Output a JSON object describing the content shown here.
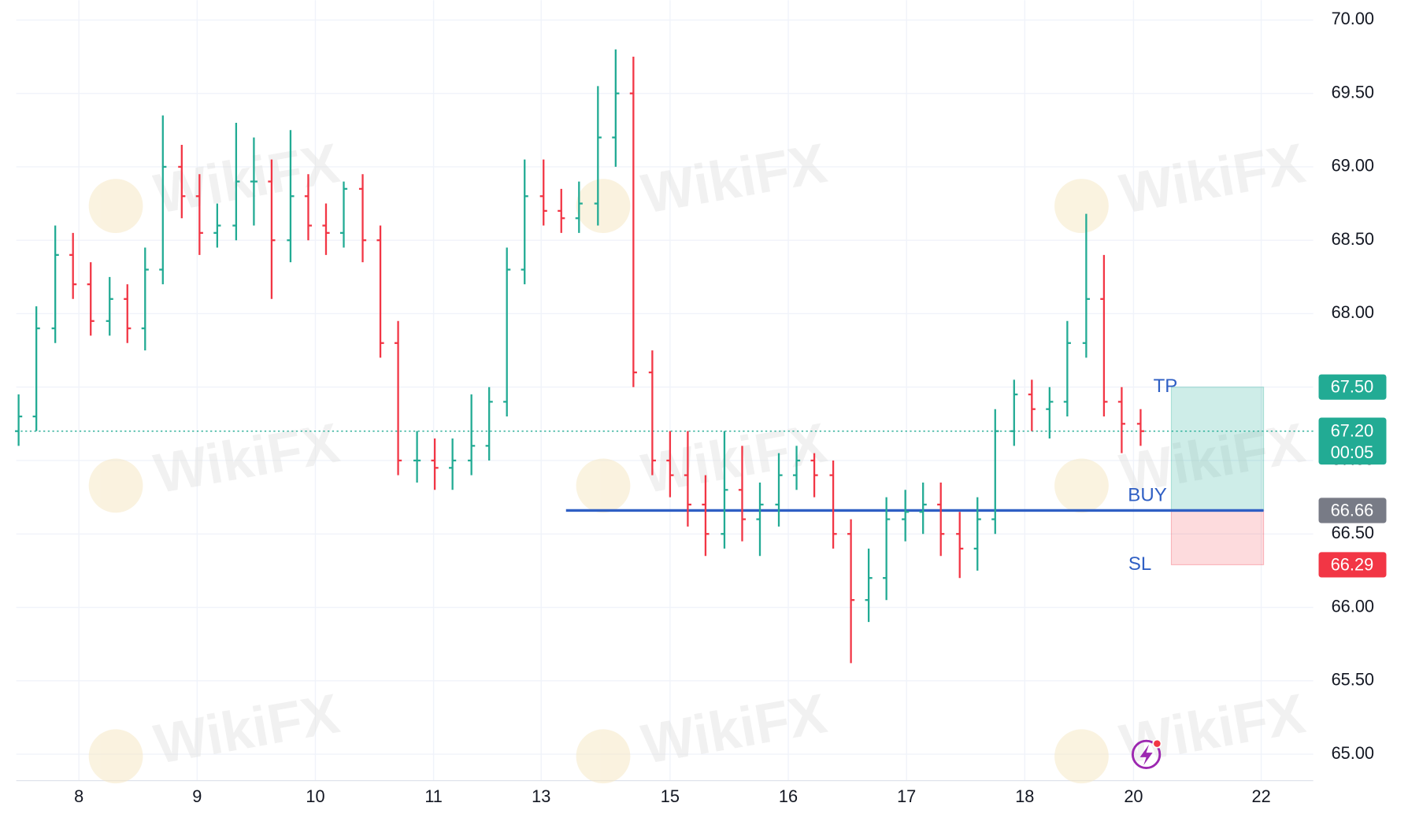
{
  "chart_data": {
    "type": "ohlc",
    "x": [
      -0.51,
      -0.36,
      -0.2,
      -0.05,
      0.1,
      0.26,
      0.41,
      0.56,
      0.71,
      0.87,
      1.02,
      1.17,
      1.33,
      1.48,
      1.63,
      1.79,
      1.94,
      2.09,
      2.24,
      2.4,
      2.55,
      2.7,
      2.86,
      3.01,
      3.16,
      3.32,
      3.47,
      3.62,
      3.77,
      3.93,
      4.08,
      4.23,
      4.39,
      4.54,
      4.69,
      4.85,
      5.0,
      5.15,
      5.3,
      5.46,
      5.61,
      5.76,
      5.92,
      6.07,
      6.22,
      6.38,
      6.53,
      6.68,
      6.83,
      6.99,
      7.14,
      7.29,
      7.45,
      7.6,
      7.75,
      7.91,
      8.06,
      8.21,
      8.36,
      8.52,
      8.67,
      8.82,
      8.98
    ],
    "open": [
      67.2,
      67.3,
      67.9,
      68.4,
      68.2,
      67.95,
      68.1,
      67.9,
      68.3,
      69.0,
      68.8,
      68.55,
      68.6,
      68.9,
      68.9,
      68.5,
      68.8,
      68.6,
      68.55,
      68.85,
      68.5,
      67.8,
      67.0,
      67.0,
      66.95,
      67.0,
      67.1,
      67.4,
      68.3,
      68.8,
      68.7,
      68.65,
      68.75,
      69.2,
      69.5,
      67.6,
      67.0,
      66.9,
      66.7,
      66.5,
      66.8,
      66.6,
      66.7,
      66.9,
      67.0,
      66.9,
      66.5,
      66.05,
      66.2,
      66.6,
      66.65,
      66.7,
      66.5,
      66.4,
      66.6,
      67.2,
      67.45,
      67.35,
      67.4,
      67.8,
      68.1,
      67.4,
      67.25
    ],
    "high": [
      67.45,
      68.05,
      68.6,
      68.55,
      68.35,
      68.25,
      68.2,
      68.45,
      69.35,
      69.15,
      68.95,
      68.75,
      69.3,
      69.2,
      69.05,
      69.25,
      68.95,
      68.75,
      68.9,
      68.95,
      68.6,
      67.95,
      67.2,
      67.15,
      67.15,
      67.45,
      67.5,
      68.45,
      69.05,
      69.05,
      68.85,
      68.9,
      69.55,
      69.8,
      69.75,
      67.75,
      67.2,
      67.2,
      66.9,
      67.2,
      67.1,
      66.85,
      67.05,
      67.1,
      67.05,
      67.0,
      66.6,
      66.4,
      66.75,
      66.8,
      66.85,
      66.85,
      66.65,
      66.75,
      67.35,
      67.55,
      67.55,
      67.5,
      67.95,
      68.68,
      68.4,
      67.5,
      67.35
    ],
    "low": [
      67.1,
      67.2,
      67.8,
      68.1,
      67.85,
      67.85,
      67.8,
      67.75,
      68.2,
      68.65,
      68.4,
      68.45,
      68.5,
      68.6,
      68.1,
      68.35,
      68.5,
      68.4,
      68.45,
      68.35,
      67.7,
      66.9,
      66.85,
      66.8,
      66.8,
      66.9,
      67.0,
      67.3,
      68.2,
      68.6,
      68.55,
      68.55,
      68.6,
      69.0,
      67.5,
      66.9,
      66.75,
      66.55,
      66.35,
      66.4,
      66.45,
      66.35,
      66.55,
      66.8,
      66.75,
      66.4,
      65.62,
      65.9,
      66.05,
      66.45,
      66.5,
      66.35,
      66.2,
      66.25,
      66.5,
      67.1,
      67.2,
      67.15,
      67.3,
      67.7,
      67.3,
      67.05,
      67.1
    ],
    "close": [
      67.3,
      67.9,
      68.4,
      68.2,
      67.95,
      68.1,
      67.9,
      68.3,
      69.0,
      68.8,
      68.55,
      68.6,
      68.9,
      68.9,
      68.5,
      68.8,
      68.6,
      68.55,
      68.85,
      68.5,
      67.8,
      67.0,
      67.0,
      66.95,
      67.0,
      67.1,
      67.4,
      68.3,
      68.8,
      68.7,
      68.65,
      68.75,
      69.2,
      69.5,
      67.6,
      67.0,
      66.9,
      66.7,
      66.5,
      66.8,
      66.6,
      66.7,
      66.9,
      67.0,
      66.9,
      66.5,
      66.05,
      66.2,
      66.6,
      66.65,
      66.7,
      66.5,
      66.4,
      66.6,
      67.2,
      67.45,
      67.35,
      67.4,
      67.8,
      68.1,
      67.4,
      67.25,
      67.2
    ],
    "up_color": "#22ab94",
    "down_color": "#f23645",
    "xlim": [
      -0.53,
      10.44
    ],
    "xticks": [
      {
        "value": 0,
        "label": "8"
      },
      {
        "value": 1,
        "label": "9"
      },
      {
        "value": 2,
        "label": "10"
      },
      {
        "value": 3,
        "label": "11"
      },
      {
        "value": 3.91,
        "label": "13"
      },
      {
        "value": 5.0,
        "label": "15"
      },
      {
        "value": 6.0,
        "label": "16"
      },
      {
        "value": 7.0,
        "label": "17"
      },
      {
        "value": 8.0,
        "label": "18"
      },
      {
        "value": 8.92,
        "label": "20"
      },
      {
        "value": 10.0,
        "label": "22"
      }
    ],
    "ylim": [
      64.82,
      70.135
    ],
    "yticks": [
      {
        "value": 65,
        "label": "65.00"
      },
      {
        "value": 65.5,
        "label": "65.50"
      },
      {
        "value": 66,
        "label": "66.00"
      },
      {
        "value": 66.5,
        "label": "66.50"
      },
      {
        "value": 67,
        "label": "67.00"
      },
      {
        "value": 67.5,
        "label": "67.50"
      },
      {
        "value": 68,
        "label": "68.00"
      },
      {
        "value": 68.5,
        "label": "68.50"
      },
      {
        "value": 69,
        "label": "69.00"
      },
      {
        "value": 69.5,
        "label": "69.50"
      },
      {
        "value": 70,
        "label": "70.00"
      }
    ],
    "grid": true,
    "last_price": {
      "value": 67.2,
      "label": "67.20",
      "countdown": "00:05",
      "color": "#22ab94"
    },
    "position": {
      "take_profit": {
        "value": 67.5,
        "label": "67.50"
      },
      "entry": {
        "value": 66.66,
        "label": "66.66"
      },
      "stop_loss": {
        "value": 66.29,
        "label": "66.29"
      },
      "tp_text": "TP",
      "entry_text": "BUY",
      "sl_text": "SL",
      "line_start": 4.12,
      "x_start": 9.24,
      "x_end": 10.02,
      "line_color": "#2f5fc4",
      "entry_color": "#787b86",
      "tp_color": "#22ab94",
      "sl_color": "#f23645"
    },
    "watermark": "WikiFX"
  }
}
